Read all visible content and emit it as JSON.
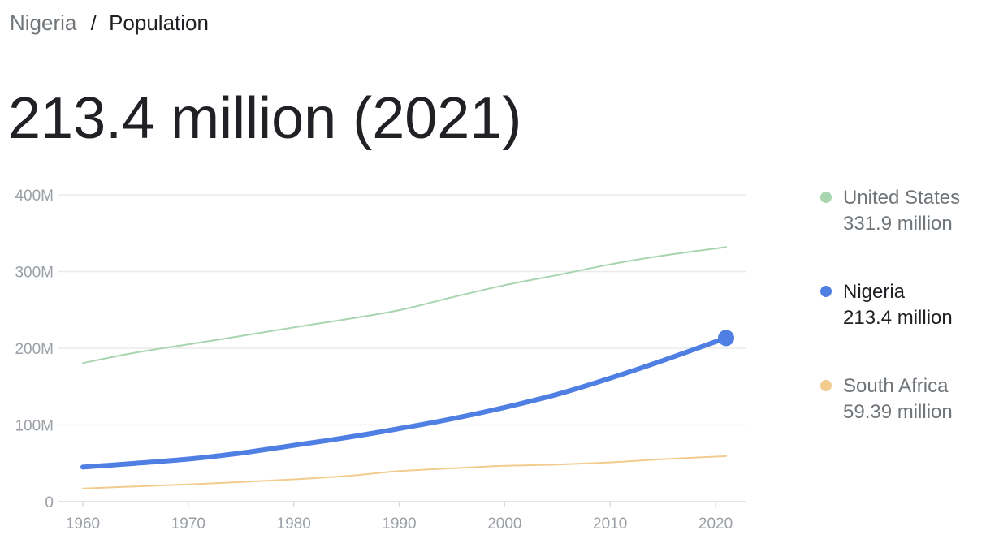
{
  "breadcrumb": {
    "parent": "Nigeria",
    "separator": "/",
    "current": "Population"
  },
  "headline": "213.4 million (2021)",
  "legend": [
    {
      "name": "United States",
      "value": "331.9 million",
      "color": "#a8d5b0",
      "active": false
    },
    {
      "name": "Nigeria",
      "value": "213.4 million",
      "color": "#4f7fe3",
      "active": true
    },
    {
      "name": "South Africa",
      "value": "59.39 million",
      "color": "#f2cc8f",
      "active": false
    }
  ],
  "chart_data": {
    "type": "line",
    "title": "",
    "xlabel": "",
    "ylabel": "",
    "xlim": [
      1960,
      2021
    ],
    "ylim": [
      0,
      400
    ],
    "grid": true,
    "legend_position": "right",
    "x_ticks": [
      1960,
      1970,
      1980,
      1990,
      2000,
      2010,
      2020
    ],
    "x_tick_labels": [
      "1960",
      "1970",
      "1980",
      "1990",
      "2000",
      "2010",
      "2020"
    ],
    "y_ticks": [
      0,
      100,
      200,
      300,
      400
    ],
    "y_tick_labels": [
      "0",
      "100M",
      "200M",
      "300M",
      "400M"
    ],
    "x": [
      1960,
      1965,
      1970,
      1975,
      1980,
      1985,
      1990,
      1995,
      2000,
      2005,
      2010,
      2015,
      2021
    ],
    "series": [
      {
        "name": "United States",
        "color": "#a8d5b0",
        "emphasis": false,
        "values": [
          180.7,
          194.3,
          205.1,
          216.0,
          227.2,
          237.9,
          249.6,
          266.3,
          282.2,
          295.5,
          309.3,
          320.7,
          331.9
        ]
      },
      {
        "name": "Nigeria",
        "color": "#4f7fe3",
        "emphasis": true,
        "values": [
          45.1,
          50.1,
          55.6,
          63.4,
          73.4,
          83.6,
          95.2,
          108.0,
          122.9,
          140.0,
          160.9,
          183.9,
          213.4
        ]
      },
      {
        "name": "South Africa",
        "color": "#f2cc8f",
        "emphasis": false,
        "values": [
          17.1,
          19.9,
          22.5,
          25.6,
          29.1,
          33.4,
          39.9,
          43.5,
          46.8,
          48.4,
          51.2,
          55.4,
          59.39
        ]
      }
    ]
  }
}
